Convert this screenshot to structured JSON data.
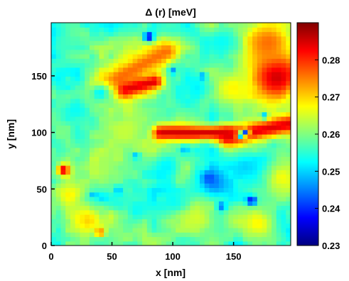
{
  "chart_data": {
    "type": "heatmap",
    "title": "Δ (r) [meV]",
    "xlabel": "x [nm]",
    "ylabel": "y [nm]",
    "xlim": [
      0,
      197
    ],
    "ylim": [
      0,
      197
    ],
    "x_ticks": [
      0,
      50,
      100,
      150
    ],
    "y_ticks": [
      0,
      50,
      100,
      150
    ],
    "colorbar": {
      "min": 0.23,
      "max": 0.29,
      "ticks": [
        "0.23",
        "0.24",
        "0.25",
        "0.26",
        "0.27",
        "0.28"
      ],
      "tick_values": [
        0.23,
        0.24,
        0.25,
        0.26,
        0.27,
        0.28
      ],
      "colormap": "jet"
    },
    "grid": false,
    "background_level": 0.258,
    "features": [
      {
        "type": "ridge",
        "x1": 90,
        "y1": 100,
        "x2": 145,
        "y2": 100,
        "width": 7,
        "value": 0.285
      },
      {
        "type": "ridge",
        "x1": 145,
        "y1": 96,
        "x2": 197,
        "y2": 108,
        "width": 8,
        "value": 0.284
      },
      {
        "type": "ridge",
        "x1": 40,
        "y1": 140,
        "x2": 95,
        "y2": 172,
        "width": 10,
        "value": 0.276
      },
      {
        "type": "ridge",
        "x1": 60,
        "y1": 138,
        "x2": 85,
        "y2": 145,
        "width": 7,
        "value": 0.284
      },
      {
        "type": "blob",
        "x": 185,
        "y": 150,
        "r": 22,
        "value": 0.286
      },
      {
        "type": "blob",
        "x": 178,
        "y": 180,
        "r": 20,
        "value": 0.276
      },
      {
        "type": "blob",
        "x": 150,
        "y": 140,
        "r": 14,
        "value": 0.268
      },
      {
        "type": "blob",
        "x": 10,
        "y": 67,
        "r": 5,
        "value": 0.286
      },
      {
        "type": "blob",
        "x": 30,
        "y": 22,
        "r": 10,
        "value": 0.27
      },
      {
        "type": "blob",
        "x": 15,
        "y": 45,
        "r": 12,
        "value": 0.268
      },
      {
        "type": "blob",
        "x": 170,
        "y": 20,
        "r": 14,
        "value": 0.268
      },
      {
        "type": "blob",
        "x": 190,
        "y": 60,
        "r": 14,
        "value": 0.267
      },
      {
        "type": "blob",
        "x": 120,
        "y": 25,
        "r": 14,
        "value": 0.265
      },
      {
        "type": "blob",
        "x": 60,
        "y": 100,
        "r": 14,
        "value": 0.264
      },
      {
        "type": "blob",
        "x": 135,
        "y": 55,
        "r": 14,
        "value": 0.246
      },
      {
        "type": "blob",
        "x": 160,
        "y": 70,
        "r": 12,
        "value": 0.25
      },
      {
        "type": "blob",
        "x": 95,
        "y": 70,
        "r": 10,
        "value": 0.252
      },
      {
        "type": "blob",
        "x": 40,
        "y": 135,
        "r": 10,
        "value": 0.252
      },
      {
        "type": "blob",
        "x": 20,
        "y": 120,
        "r": 10,
        "value": 0.253
      },
      {
        "type": "blob",
        "x": 120,
        "y": 140,
        "r": 10,
        "value": 0.252
      },
      {
        "type": "blob",
        "x": 140,
        "y": 180,
        "r": 12,
        "value": 0.253
      },
      {
        "type": "blob",
        "x": 100,
        "y": 40,
        "r": 10,
        "value": 0.253
      },
      {
        "type": "blob",
        "x": 70,
        "y": 30,
        "r": 8,
        "value": 0.253
      },
      {
        "type": "blob",
        "x": 160,
        "y": 100,
        "r": 3,
        "value": 0.24
      },
      {
        "type": "blob",
        "x": 155,
        "y": 98,
        "r": 2.5,
        "value": 0.236
      },
      {
        "type": "blob",
        "x": 165,
        "y": 40,
        "r": 4,
        "value": 0.236
      },
      {
        "type": "blob",
        "x": 140,
        "y": 35,
        "r": 4,
        "value": 0.244
      },
      {
        "type": "blob",
        "x": 130,
        "y": 60,
        "r": 6,
        "value": 0.242
      },
      {
        "type": "blob",
        "x": 80,
        "y": 185,
        "r": 4,
        "value": 0.235
      },
      {
        "type": "blob",
        "x": 125,
        "y": 150,
        "r": 3,
        "value": 0.245
      },
      {
        "type": "blob",
        "x": 35,
        "y": 45,
        "r": 3,
        "value": 0.247
      },
      {
        "type": "blob",
        "x": 100,
        "y": 155,
        "r": 3,
        "value": 0.246
      },
      {
        "type": "blob",
        "x": 110,
        "y": 85,
        "r": 4,
        "value": 0.248
      },
      {
        "type": "blob",
        "x": 175,
        "y": 115,
        "r": 3,
        "value": 0.248
      },
      {
        "type": "blob",
        "x": 55,
        "y": 50,
        "r": 3,
        "value": 0.249
      },
      {
        "type": "blob",
        "x": 70,
        "y": 80,
        "r": 3,
        "value": 0.248
      },
      {
        "type": "blob",
        "x": 40,
        "y": 12,
        "r": 4,
        "value": 0.276
      }
    ]
  }
}
